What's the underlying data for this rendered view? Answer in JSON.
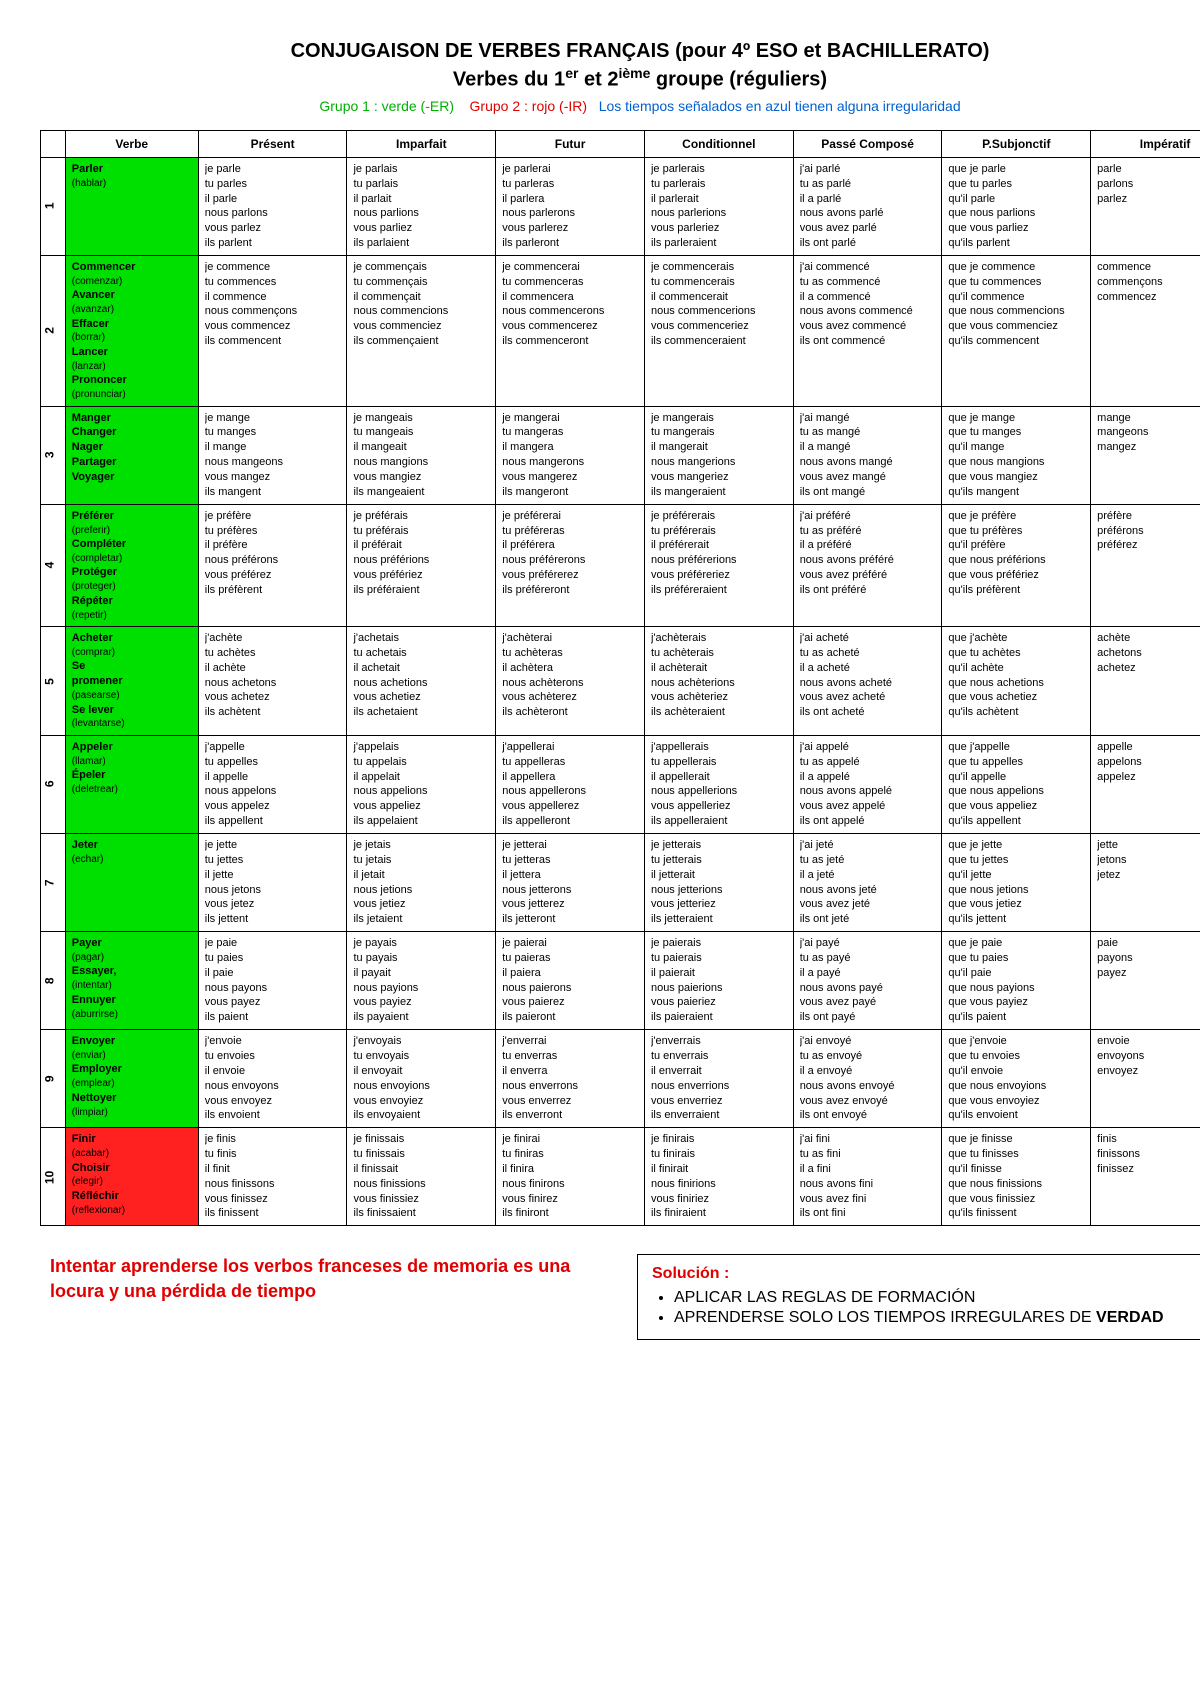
{
  "colors": {
    "group1": "#00e000",
    "group2": "#ff2020",
    "irregular": "#0060d0",
    "text": "#000000",
    "bg": "#ffffff"
  },
  "title": "CONJUGAISON DE VERBES FRANÇAIS (pour 4º ESO et BACHILLERATO)",
  "subtitle_a": "Verbes du 1",
  "subtitle_sup1": "er",
  "subtitle_b": " et 2",
  "subtitle_sup2": "ième",
  "subtitle_c": " groupe (réguliers)",
  "legend_g1": "Grupo 1 : verde (-ER)",
  "legend_g2": "Grupo 2 : rojo (-IR)",
  "legend_irr": "Los tiempos señalados en azul tienen alguna irregularidad",
  "headers": [
    "",
    "Verbe",
    "Présent",
    "Imparfait",
    "Futur",
    "Conditionnel",
    "Passé Composé",
    "P.Subjonctif",
    "Impératif"
  ],
  "rows": [
    {
      "n": "1",
      "group": "g1",
      "verb": [
        "Parler",
        "(hablar)"
      ],
      "present": [
        "je parle",
        "tu parles",
        "il parle",
        "nous parlons",
        "vous parlez",
        "ils parlent"
      ],
      "imparfait": [
        "je parlais",
        "tu parlais",
        "il parlait",
        "nous parlions",
        "vous parliez",
        "ils parlaient"
      ],
      "futur": [
        "je parlerai",
        "tu parleras",
        "il parlera",
        "nous parlerons",
        "vous parlerez",
        "ils parleront"
      ],
      "cond": [
        "je parlerais",
        "tu parlerais",
        "il parlerait",
        "nous parlerions",
        "vous parleriez",
        "ils parleraient"
      ],
      "pc": [
        "j'ai parlé",
        "tu as parlé",
        "il a parlé",
        "nous avons parlé",
        "vous avez parlé",
        "ils ont parlé"
      ],
      "subj": [
        "que je parle",
        "que tu parles",
        "qu'il parle",
        "que nous parlions",
        "que vous parliez",
        "qu'ils parlent"
      ],
      "imp": [
        "parle",
        "",
        "parlons",
        "parlez"
      ]
    },
    {
      "n": "2",
      "group": "g1",
      "verb": [
        "Commencer",
        "(comenzar)",
        "Avancer",
        "(avanzar)",
        "Effacer",
        "(borrar)",
        "Lancer",
        "(lanzar)",
        "Prononcer",
        "(pronunciar)"
      ],
      "present": [
        "je commence",
        "tu commences",
        "il commence",
        "nous commençons",
        "vous commencez",
        "ils commencent"
      ],
      "imparfait": [
        "je commençais",
        "tu commençais",
        "il commençait",
        "nous commencions",
        "vous commenciez",
        "ils commençaient"
      ],
      "futur": [
        "je commencerai",
        "tu commenceras",
        "il commencera",
        "nous commencerons",
        "vous commencerez",
        "ils commenceront"
      ],
      "cond": [
        "je commencerais",
        "tu commencerais",
        "il commencerait",
        "nous commencerions",
        "vous commenceriez",
        "ils commenceraient"
      ],
      "pc": [
        "j'ai commencé",
        "tu as commencé",
        "il a commencé",
        "nous avons commencé",
        "vous avez commencé",
        "ils ont commencé"
      ],
      "subj": [
        "que je commence",
        "que tu commences",
        "qu'il commence",
        "que nous commencions",
        "que vous commenciez",
        "qu'ils commencent"
      ],
      "imp": [
        "commence",
        "",
        "commençons",
        "commencez"
      ]
    },
    {
      "n": "3",
      "group": "g1",
      "verb": [
        "Manger",
        "Changer",
        "Nager",
        "Partager",
        "Voyager"
      ],
      "present": [
        "je mange",
        "tu manges",
        "il mange",
        "nous mangeons",
        "vous mangez",
        "ils mangent"
      ],
      "imparfait": [
        "je mangeais",
        "tu mangeais",
        "il mangeait",
        "nous mangions",
        "vous mangiez",
        "ils mangeaient"
      ],
      "futur": [
        "je mangerai",
        "tu mangeras",
        "il mangera",
        "nous mangerons",
        "vous mangerez",
        "ils mangeront"
      ],
      "cond": [
        "je mangerais",
        "tu mangerais",
        "il mangerait",
        "nous mangerions",
        "vous mangeriez",
        "ils mangeraient"
      ],
      "pc": [
        "j'ai mangé",
        "tu as mangé",
        "il a mangé",
        "nous avons mangé",
        "vous avez mangé",
        "ils ont mangé"
      ],
      "subj": [
        "que je mange",
        "que tu manges",
        "qu'il mange",
        "que nous mangions",
        "que vous mangiez",
        "qu'ils mangent"
      ],
      "imp": [
        "mange",
        "",
        "mangeons",
        "mangez"
      ]
    },
    {
      "n": "4",
      "group": "g1",
      "verb": [
        "Préférer",
        "(preferir)",
        "Compléter",
        "(completar)",
        "Protéger",
        "(proteger)",
        "Répéter",
        "(repetir)"
      ],
      "present": [
        "je préfère",
        "tu préfères",
        "il préfère",
        "nous préférons",
        "vous préférez",
        "ils préfèrent"
      ],
      "imparfait": [
        "je préférais",
        "tu préférais",
        "il préférait",
        "nous préférions",
        "vous préfériez",
        "ils préféraient"
      ],
      "futur": [
        "je préférerai",
        "tu préféreras",
        "il préférera",
        "nous préférerons",
        "vous préférerez",
        "ils préféreront"
      ],
      "cond": [
        "je préférerais",
        "tu préférerais",
        "il préférerait",
        "nous préférerions",
        "vous préféreriez",
        "ils préféreraient"
      ],
      "pc": [
        "j'ai préféré",
        "tu as préféré",
        "il a préféré",
        "nous avons préféré",
        "vous avez préféré",
        "ils ont préféré"
      ],
      "subj": [
        "que je préfère",
        "que tu préfères",
        "qu'il préfère",
        "que nous préférions",
        "que vous préfériez",
        "qu'ils préfèrent"
      ],
      "imp": [
        "préfère",
        "",
        "préférons",
        "préférez"
      ]
    },
    {
      "n": "5",
      "group": "g1",
      "verb": [
        "Acheter",
        "(comprar)",
        "Se",
        "promener",
        "(pasearse)",
        "Se lever",
        "(levantarse)"
      ],
      "present": [
        "j'achète",
        "tu achètes",
        "il achète",
        "nous achetons",
        "vous achetez",
        "ils achètent"
      ],
      "imparfait": [
        "j'achetais",
        "tu achetais",
        "il achetait",
        "nous achetions",
        "vous achetiez",
        "ils achetaient"
      ],
      "futur": [
        "j'achèterai",
        "tu achèteras",
        "il achètera",
        "nous achèterons",
        "vous achèterez",
        "ils achèteront"
      ],
      "cond": [
        "j'achèterais",
        "tu achèterais",
        "il achèterait",
        "nous achèterions",
        "vous achèteriez",
        "ils achèteraient"
      ],
      "pc": [
        "j'ai acheté",
        "tu as acheté",
        "il a acheté",
        "nous avons acheté",
        "vous avez acheté",
        "ils ont acheté"
      ],
      "subj": [
        "que j'achète",
        "que tu achètes",
        "qu'il achète",
        "que nous achetions",
        "que vous achetiez",
        "qu'ils achètent"
      ],
      "imp": [
        "achète",
        "",
        "achetons",
        "achetez"
      ]
    },
    {
      "n": "6",
      "group": "g1",
      "verb": [
        "Appeler",
        "(llamar)",
        "Épeler",
        "(deletrear)"
      ],
      "present": [
        "j'appelle",
        "tu appelles",
        "il appelle",
        "nous appelons",
        "vous appelez",
        "ils appellent"
      ],
      "imparfait": [
        "j'appelais",
        "tu appelais",
        "il appelait",
        "nous appelions",
        "vous appeliez",
        "ils appelaient"
      ],
      "futur": [
        "j'appellerai",
        "tu appelleras",
        "il appellera",
        "nous appellerons",
        "vous appellerez",
        "ils appelleront"
      ],
      "cond": [
        "j'appellerais",
        "tu appellerais",
        "il appellerait",
        "nous appellerions",
        "vous appelleriez",
        "ils appelleraient"
      ],
      "pc": [
        "j'ai appelé",
        "tu as appelé",
        "il a appelé",
        "nous avons appelé",
        "vous avez appelé",
        "ils ont appelé"
      ],
      "subj": [
        "que j'appelle",
        "que tu appelles",
        "qu'il appelle",
        "que nous appelions",
        "que vous appeliez",
        "qu'ils appellent"
      ],
      "imp": [
        "appelle",
        "",
        "appelons",
        "appelez"
      ]
    },
    {
      "n": "7",
      "group": "g1",
      "verb": [
        "Jeter",
        "(echar)"
      ],
      "present": [
        "je jette",
        "tu jettes",
        "il jette",
        "nous jetons",
        "vous jetez",
        "ils jettent"
      ],
      "imparfait": [
        "je jetais",
        "tu jetais",
        "il jetait",
        "nous jetions",
        "vous jetiez",
        "ils jetaient"
      ],
      "futur": [
        "je jetterai",
        "tu jetteras",
        "il jettera",
        "nous jetterons",
        "vous jetterez",
        "ils jetteront"
      ],
      "cond": [
        "je jetterais",
        "tu jetterais",
        "il jetterait",
        "nous jetterions",
        "vous jetteriez",
        "ils jetteraient"
      ],
      "pc": [
        "j'ai jeté",
        "tu as jeté",
        "il a jeté",
        "nous avons jeté",
        "vous avez jeté",
        "ils ont jeté"
      ],
      "subj": [
        "que je jette",
        "que tu jettes",
        "qu'il jette",
        "que nous jetions",
        "que vous jetiez",
        "qu'ils jettent"
      ],
      "imp": [
        "jette",
        "",
        "jetons",
        "jetez"
      ]
    },
    {
      "n": "8",
      "group": "g1",
      "verb": [
        "Payer",
        "(pagar)",
        "Essayer,",
        "(intentar)",
        "Ennuyer",
        "(aburrirse)"
      ],
      "present": [
        "je paie",
        "tu paies",
        "il paie",
        "nous payons",
        "vous payez",
        "ils paient"
      ],
      "imparfait": [
        "je payais",
        "tu payais",
        "il payait",
        "nous payions",
        "vous payiez",
        "ils payaient"
      ],
      "futur": [
        "je paierai",
        "tu paieras",
        "il paiera",
        "nous paierons",
        "vous paierez",
        "ils paieront"
      ],
      "cond": [
        "je paierais",
        "tu paierais",
        "il paierait",
        "nous paierions",
        "vous paieriez",
        "ils paieraient"
      ],
      "pc": [
        "j'ai payé",
        "tu as payé",
        "il a payé",
        "nous avons payé",
        "vous avez payé",
        "ils ont payé"
      ],
      "subj": [
        "que je paie",
        "que tu paies",
        "qu'il paie",
        "que nous payions",
        "que vous payiez",
        "qu'ils paient"
      ],
      "imp": [
        "paie",
        "",
        "payons",
        "payez"
      ]
    },
    {
      "n": "9",
      "group": "g1",
      "verb": [
        "Envoyer",
        "(enviar)",
        "Employer",
        "(emplear)",
        "Nettoyer",
        "(limpiar)"
      ],
      "present": [
        "j'envoie",
        "tu envoies",
        "il envoie",
        "nous envoyons",
        "vous envoyez",
        "ils envoient"
      ],
      "imparfait": [
        "j'envoyais",
        "tu envoyais",
        "il envoyait",
        "nous envoyions",
        "vous envoyiez",
        "ils envoyaient"
      ],
      "futur": [
        "j'enverrai",
        "tu enverras",
        "il enverra",
        "nous enverrons",
        "vous enverrez",
        "ils enverront"
      ],
      "cond": [
        "j'enverrais",
        "tu enverrais",
        "il enverrait",
        "nous enverrions",
        "vous enverriez",
        "ils enverraient"
      ],
      "pc": [
        "j'ai envoyé",
        "tu as envoyé",
        "il a envoyé",
        "nous avons envoyé",
        "vous avez envoyé",
        "ils ont envoyé"
      ],
      "subj": [
        "que j'envoie",
        "que tu envoies",
        "qu'il envoie",
        "que nous envoyions",
        "que vous envoyiez",
        "qu'ils envoient"
      ],
      "imp": [
        "envoie",
        "",
        "envoyons",
        "envoyez"
      ]
    },
    {
      "n": "10",
      "group": "g2",
      "verb": [
        "Finir",
        "(acabar)",
        "Choisir",
        "(elegir)",
        "Réfléchir",
        "(reflexionar)"
      ],
      "present": [
        "je finis",
        "tu finis",
        "il finit",
        "nous finissons",
        "vous finissez",
        "ils finissent"
      ],
      "imparfait": [
        "je finissais",
        "tu finissais",
        "il finissait",
        "nous finissions",
        "vous finissiez",
        "ils finissaient"
      ],
      "futur": [
        "je finirai",
        "tu finiras",
        "il finira",
        "nous finirons",
        "vous finirez",
        "ils finiront"
      ],
      "cond": [
        "je finirais",
        "tu finirais",
        "il finirait",
        "nous finirions",
        "vous finiriez",
        "ils finiraient"
      ],
      "pc": [
        "j'ai fini",
        "tu as fini",
        "il a fini",
        "nous avons fini",
        "vous avez fini",
        "ils ont fini"
      ],
      "subj": [
        "que je finisse",
        "que tu finisses",
        "qu'il finisse",
        "que nous finissions",
        "que vous finissiez",
        "qu'ils finissent"
      ],
      "imp": [
        "finis",
        "",
        "finissons",
        "finissez"
      ]
    }
  ],
  "note_left": "Intentar aprenderse los verbos franceses de memoria es una locura y una pérdida de tiempo",
  "note_sol_label": "Solución :",
  "note_items": [
    "APLICAR LAS REGLAS DE FORMACIÓN",
    "APRENDERSE SOLO LOS TIEMPOS IRREGULARES DE"
  ],
  "note_bold": "VERDAD",
  "page_number": "1"
}
